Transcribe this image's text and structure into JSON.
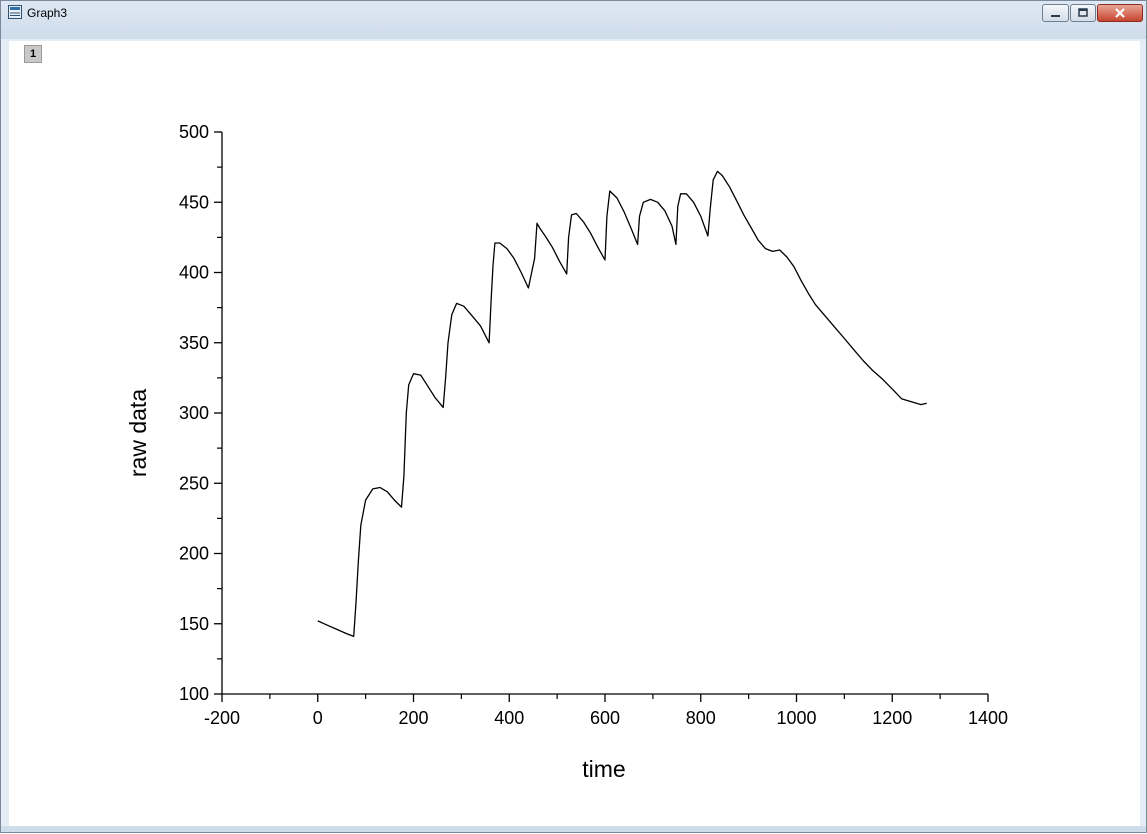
{
  "window": {
    "title": "Graph3",
    "layer_label": "1",
    "icon": "graph-window-icon",
    "controls": [
      "minimize-icon",
      "maximize-icon",
      "close-icon"
    ]
  },
  "chart_data": {
    "type": "line",
    "title": "",
    "xlabel": "time",
    "ylabel": "raw data",
    "xlim": [
      -200,
      1400
    ],
    "ylim": [
      100,
      500
    ],
    "xticks": [
      "-200",
      "0",
      "200",
      "400",
      "600",
      "800",
      "1000",
      "1200",
      "1400"
    ],
    "yticks": [
      "100",
      "150",
      "200",
      "250",
      "300",
      "350",
      "400",
      "450",
      "500"
    ],
    "grid": false,
    "line_color": "#000000",
    "series": [
      {
        "x": [
          0,
          20,
          40,
          60,
          75,
          80,
          85,
          90,
          100,
          115,
          130,
          145,
          160,
          175,
          180,
          185,
          190,
          200,
          215,
          230,
          245,
          262,
          267,
          272,
          280,
          290,
          305,
          320,
          340,
          358,
          362,
          366,
          370,
          380,
          395,
          410,
          425,
          440,
          453,
          458,
          463,
          475,
          490,
          505,
          520,
          524,
          530,
          540,
          555,
          570,
          585,
          600,
          604,
          610,
          625,
          640,
          655,
          668,
          672,
          680,
          695,
          710,
          725,
          740,
          748,
          752,
          758,
          770,
          785,
          800,
          815,
          820,
          826,
          835,
          845,
          860,
          875,
          890,
          905,
          920,
          935,
          950,
          965,
          980,
          995,
          1010,
          1025,
          1040,
          1060,
          1080,
          1100,
          1120,
          1140,
          1160,
          1180,
          1200,
          1220,
          1240,
          1260,
          1272
        ],
        "y": [
          152,
          149,
          146,
          143,
          141,
          165,
          195,
          220,
          238,
          246,
          247,
          244,
          238,
          233,
          255,
          300,
          320,
          328,
          327,
          319,
          311,
          304,
          325,
          350,
          370,
          378,
          376,
          370,
          362,
          350,
          380,
          405,
          421,
          421,
          417,
          410,
          400,
          389,
          410,
          435,
          432,
          426,
          418,
          408,
          399,
          425,
          441,
          442,
          436,
          428,
          418,
          409,
          440,
          458,
          453,
          443,
          431,
          420,
          440,
          450,
          452,
          450,
          444,
          433,
          420,
          447,
          456,
          456,
          450,
          440,
          426,
          446,
          466,
          472,
          469,
          461,
          451,
          441,
          432,
          423,
          417,
          415,
          416,
          411,
          404,
          394,
          385,
          377,
          369,
          361,
          353,
          345,
          337,
          330,
          324,
          317,
          310,
          308,
          306,
          307
        ]
      }
    ]
  }
}
